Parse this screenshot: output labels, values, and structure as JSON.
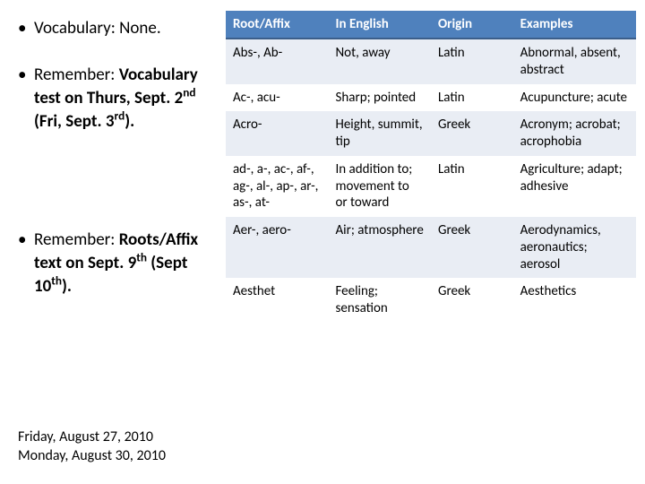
{
  "left": {
    "bullets": [
      {
        "plain": "Vocabulary: ",
        "bold": "",
        "tail": "None."
      },
      {
        "plain": "Remember: ",
        "bold": "Vocabulary test on Thurs, Sept. 2",
        "sup": "nd",
        "bold2": " (Fri, Sept. 3",
        "sup2": "rd",
        "bold3": ")."
      },
      {
        "plain": "Remember: ",
        "bold": "Roots/Affix text on Sept. 9",
        "sup": "th",
        "bold2": " (Sept 10",
        "sup2": "th",
        "bold3": ")."
      }
    ],
    "dates": [
      "Friday, August 27, 2010",
      "Monday, August 30, 2010"
    ]
  },
  "table": {
    "header_bg": "#4f81bd",
    "header_fg": "#ffffff",
    "band_color": "#e9edf4",
    "columns": [
      "Root/Affix",
      "In English",
      "Origin",
      "Examples"
    ],
    "rows": [
      [
        "Abs-, Ab-",
        "Not, away",
        "Latin",
        "Abnormal, absent, abstract"
      ],
      [
        "Ac-, acu-",
        "Sharp; pointed",
        "Latin",
        "Acupuncture; acute"
      ],
      [
        "Acro-",
        "Height, summit, tip",
        "Greek",
        "Acronym; acrobat; acrophobia"
      ],
      [
        "ad-, a-, ac-, af-, ag-, al-, ap-, ar-, as-, at-",
        "In addition to; movement to or toward",
        "Latin",
        "Agriculture; adapt; adhesive"
      ],
      [
        "Aer-, aero-",
        "Air; atmosphere",
        "Greek",
        "Aerodynamics, aeronautics; aerosol"
      ],
      [
        "Aesthet",
        "Feeling; sensation",
        "Greek",
        "Aesthetics"
      ]
    ]
  }
}
